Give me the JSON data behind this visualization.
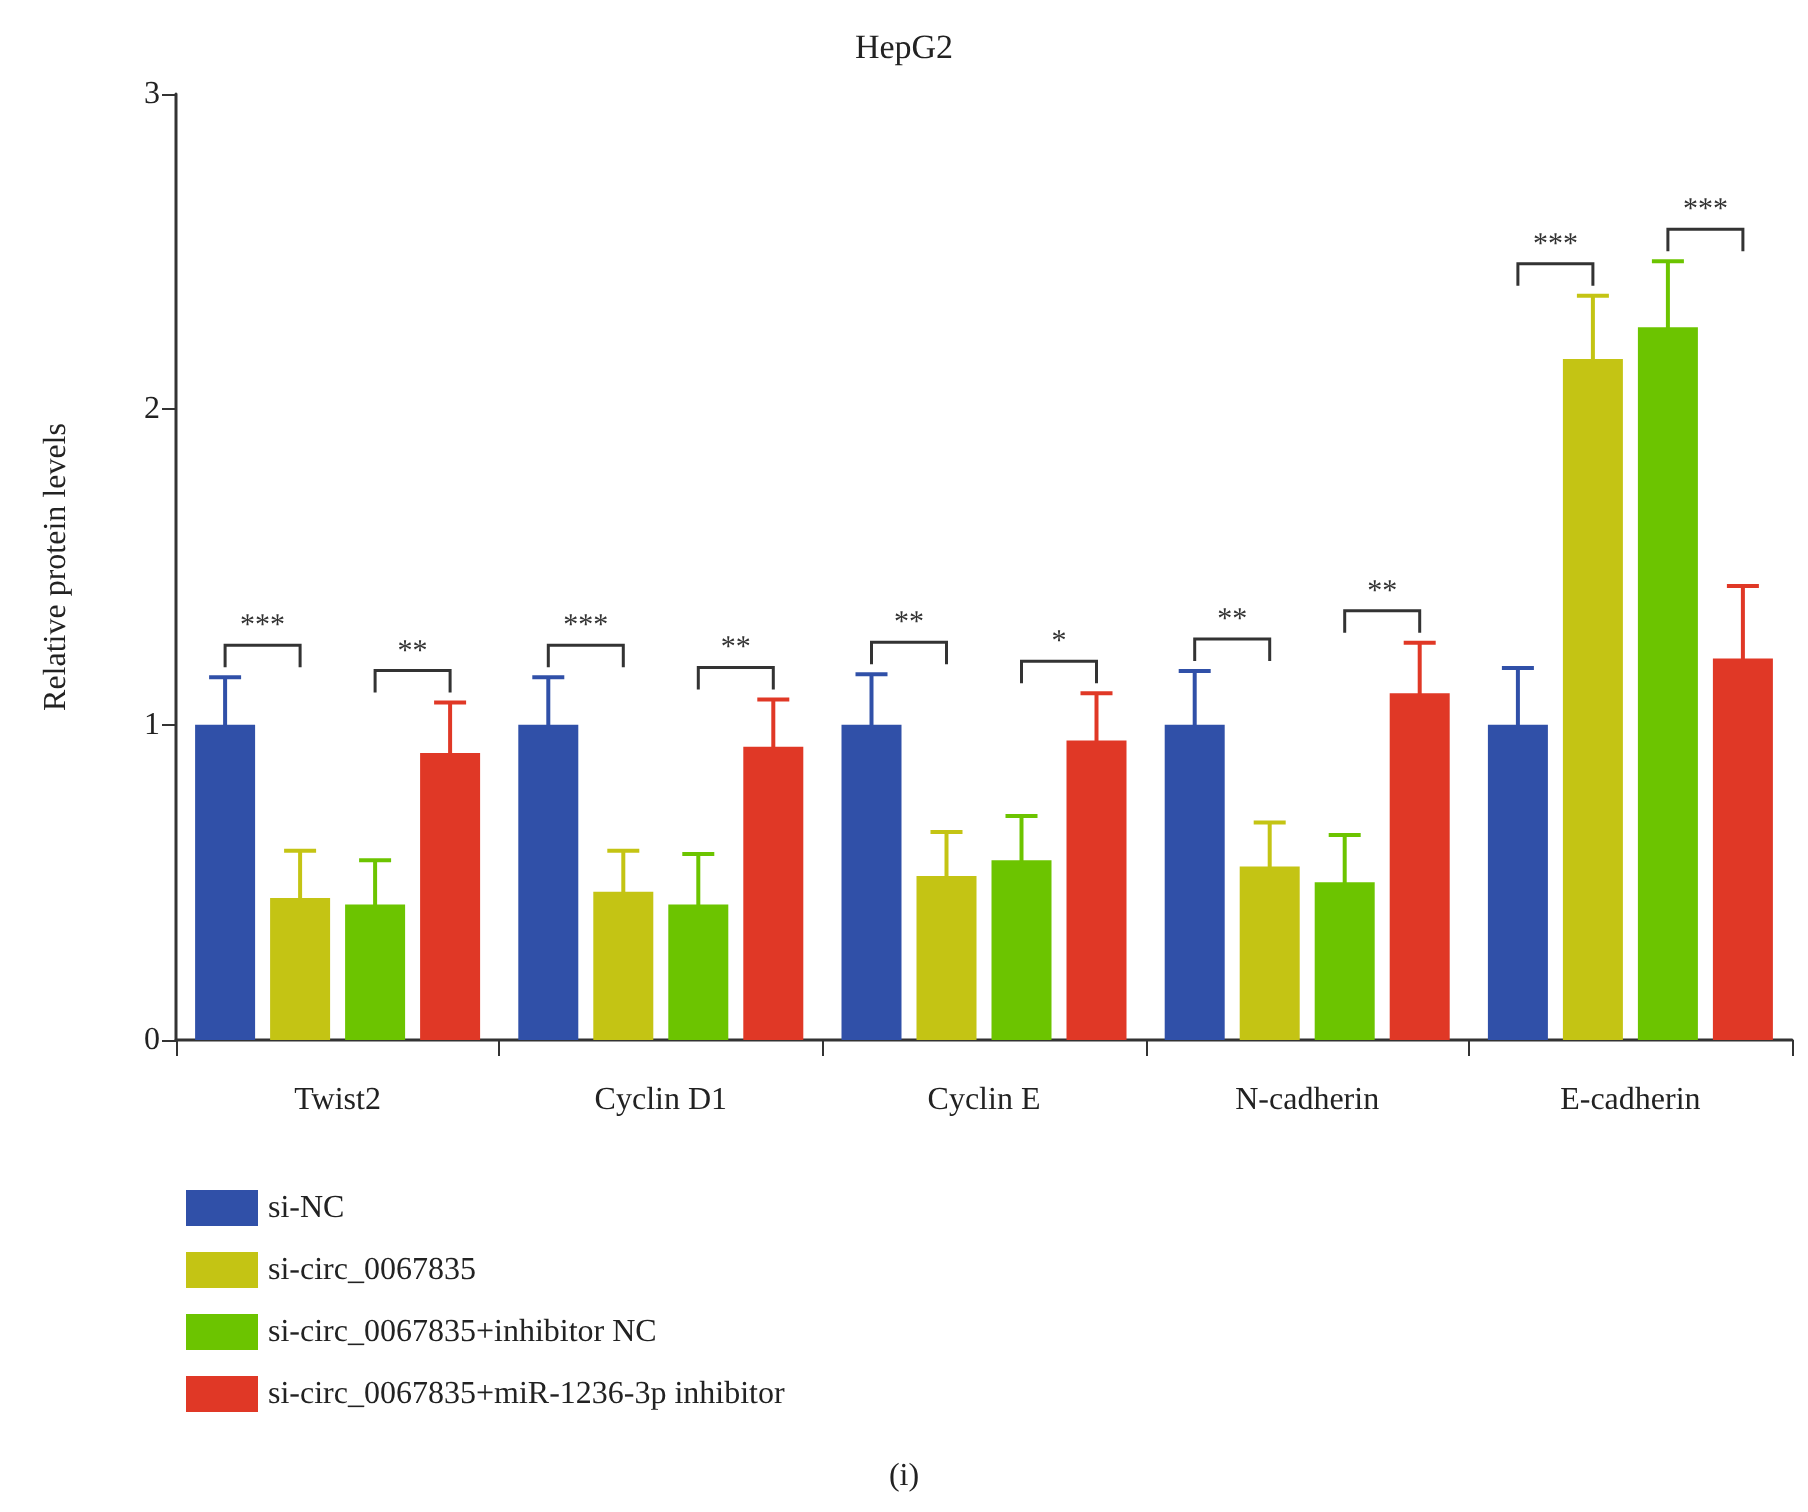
{
  "chart_data": {
    "type": "bar",
    "title": "HepG2",
    "ylabel": "Relative protein levels",
    "categories": [
      "Twist2",
      "Cyclin D1",
      "Cyclin E",
      "N-cadherin",
      "E-cadherin"
    ],
    "series": [
      {
        "name": "si-NC",
        "color": "#3050a8",
        "values": [
          1,
          1,
          1,
          1,
          1
        ],
        "errors": [
          0.15,
          0.15,
          0.16,
          0.17,
          0.18
        ]
      },
      {
        "name": "si-circ_0067835",
        "color": "#c4c414",
        "values": [
          0.45,
          0.47,
          0.52,
          0.55,
          2.16
        ],
        "errors": [
          0.15,
          0.13,
          0.14,
          0.14,
          0.2
        ]
      },
      {
        "name": "si-circ_0067835+inhibitor NC",
        "color": "#6cc400",
        "values": [
          0.43,
          0.43,
          0.57,
          0.5,
          2.26
        ],
        "errors": [
          0.14,
          0.16,
          0.14,
          0.15,
          0.21
        ]
      },
      {
        "name": "si-circ_0067835+miR-1236-3p inhibitor",
        "color": "#e03826",
        "values": [
          0.91,
          0.93,
          0.95,
          1.1,
          1.21
        ],
        "errors": [
          0.16,
          0.15,
          0.15,
          0.16,
          0.23
        ]
      }
    ],
    "ylim": [
      0,
      3
    ],
    "yticks": [
      0,
      1,
      2,
      3
    ],
    "grid": false,
    "legend": "bottom left",
    "annotations": [
      "***",
      "**",
      "***",
      "**",
      "**",
      "*",
      "**",
      "**",
      "***",
      "***",
      "(i)"
    ]
  }
}
